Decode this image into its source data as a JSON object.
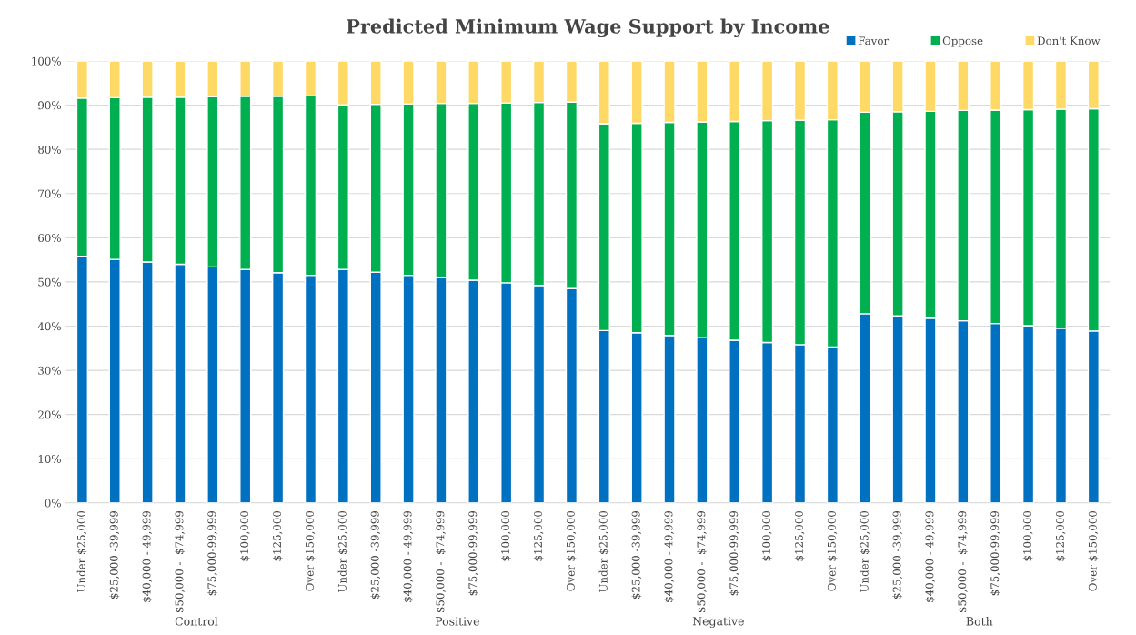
{
  "chart_data": {
    "type": "bar",
    "title": "Predicted Minimum Wage Support by Income",
    "stacked": true,
    "categories": [
      "Under $25,000",
      "$25,000 -39,999",
      "$40,000 - 49,999",
      "$50,000 -  $74,999",
      "$75,000-99,999",
      "$100,000",
      "$125,000",
      "Over $150,000",
      "Under $25,000",
      "$25,000 -39,999",
      "$40,000 - 49,999",
      "$50,000 -  $74,999",
      "$75,000-99,999",
      "$100,000",
      "$125,000",
      "Over $150,000",
      "Under $25,000",
      "$25,000 -39,999",
      "$40,000 - 49,999",
      "$50,000 -  $74,999",
      "$75,000-99,999",
      "$100,000",
      "$125,000",
      "Over $150,000",
      "Under $25,000",
      "$25,000 -39,999",
      "$40,000 - 49,999",
      "$50,000 -  $74,999",
      "$75,000-99,999",
      "$100,000",
      "$125,000",
      "Over $150,000"
    ],
    "annotations": [
      "Control",
      "Positive",
      "Negative",
      "Both"
    ],
    "series": [
      {
        "name": "Favor",
        "color": "#0070c0",
        "values": [
          55.8,
          55.1,
          54.5,
          54.0,
          53.4,
          52.8,
          52.1,
          51.5,
          52.8,
          52.2,
          51.5,
          51.0,
          50.4,
          49.8,
          49.2,
          48.5,
          39.0,
          38.5,
          37.9,
          37.4,
          36.8,
          36.3,
          35.8,
          35.3,
          42.8,
          42.3,
          41.8,
          41.2,
          40.6,
          40.1,
          39.5,
          38.9
        ]
      },
      {
        "name": "Oppose",
        "color": "#00b050",
        "values": [
          35.8,
          36.6,
          37.3,
          37.8,
          38.5,
          39.2,
          39.9,
          40.6,
          37.3,
          38.0,
          38.8,
          39.4,
          40.0,
          40.7,
          41.4,
          42.2,
          46.8,
          47.4,
          48.2,
          48.8,
          49.5,
          50.2,
          50.8,
          51.4,
          45.6,
          46.2,
          46.8,
          47.6,
          48.3,
          48.9,
          49.6,
          50.3
        ]
      },
      {
        "name": "Don't Know",
        "color": "#ffd966",
        "values": [
          8.4,
          8.3,
          8.2,
          8.2,
          8.1,
          8.0,
          8.0,
          7.9,
          9.9,
          9.8,
          9.7,
          9.6,
          9.6,
          9.5,
          9.4,
          9.3,
          14.2,
          14.1,
          13.9,
          13.8,
          13.7,
          13.5,
          13.4,
          13.3,
          11.6,
          11.5,
          11.4,
          11.2,
          11.1,
          11.0,
          10.9,
          10.8
        ]
      }
    ],
    "ylim": [
      0,
      100
    ],
    "yticks": [
      {
        "value": 0,
        "label": "0%"
      },
      {
        "value": 10,
        "label": "10%"
      },
      {
        "value": 20,
        "label": "20%"
      },
      {
        "value": 30,
        "label": "30%"
      },
      {
        "value": 40,
        "label": "40%"
      },
      {
        "value": 50,
        "label": "50%"
      },
      {
        "value": 60,
        "label": "60%"
      },
      {
        "value": 70,
        "label": "70%"
      },
      {
        "value": 80,
        "label": "80%"
      },
      {
        "value": 90,
        "label": "90%"
      },
      {
        "value": 100,
        "label": "100%"
      }
    ],
    "grid": "y",
    "legend": "top right"
  }
}
